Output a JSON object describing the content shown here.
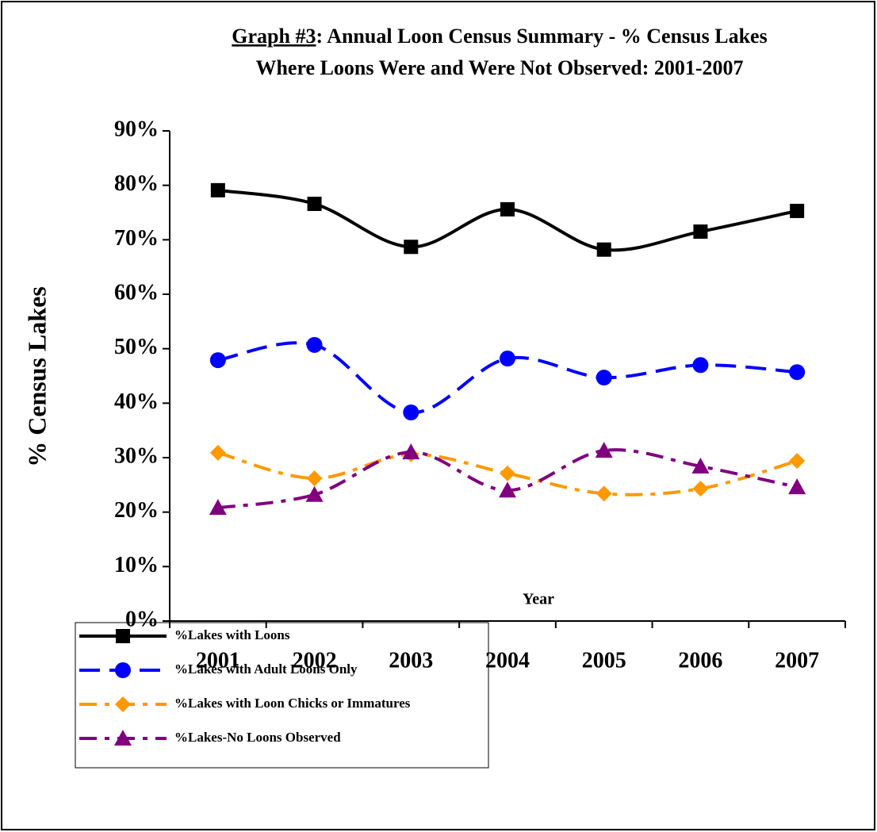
{
  "chart_data": {
    "type": "line",
    "title": [
      "Graph #3",
      ": Annual Loon Census Summary - % Census Lakes",
      "Where Loons Were and Were Not Observed: 2001-2007"
    ],
    "x_label": "Year",
    "y_label": "% Census Lakes",
    "categories": [
      "2001",
      "2002",
      "2003",
      "2004",
      "2005",
      "2006",
      "2007"
    ],
    "ylim": [
      0,
      90
    ],
    "yticks": [
      {
        "value": 0,
        "label": "0%"
      },
      {
        "value": 10,
        "label": "10%"
      },
      {
        "value": 20,
        "label": "20%"
      },
      {
        "value": 30,
        "label": "30%"
      },
      {
        "value": 40,
        "label": "40%"
      },
      {
        "value": 50,
        "label": "50%"
      },
      {
        "value": 60,
        "label": "60%"
      },
      {
        "value": 70,
        "label": "70%"
      },
      {
        "value": 80,
        "label": "80%"
      },
      {
        "value": 90,
        "label": "90%"
      }
    ],
    "series": [
      {
        "name": "%Lakes with Loons",
        "color": "#000000",
        "marker": "square",
        "dash": "solid",
        "values": [
          79.1,
          76.6,
          68.7,
          75.6,
          68.2,
          71.5,
          75.3
        ]
      },
      {
        "name": "%Lakes with Adult Loons Only",
        "color": "#0000ff",
        "marker": "circle",
        "dash": "long-dash",
        "values": [
          47.9,
          50.7,
          38.3,
          48.2,
          44.7,
          47.0,
          45.7
        ]
      },
      {
        "name": "%Lakes with Loon Chicks or Immatures",
        "color": "#ff9900",
        "marker": "diamond",
        "dash": "dash-dot",
        "values": [
          30.9,
          26.2,
          30.6,
          27.1,
          23.4,
          24.3,
          29.4
        ]
      },
      {
        "name": "%Lakes-No Loons Observed",
        "color": "#800080",
        "marker": "triangle",
        "dash": "dash-dot",
        "values": [
          20.8,
          23.2,
          31.0,
          24.0,
          31.3,
          28.4,
          24.6
        ]
      }
    ]
  }
}
